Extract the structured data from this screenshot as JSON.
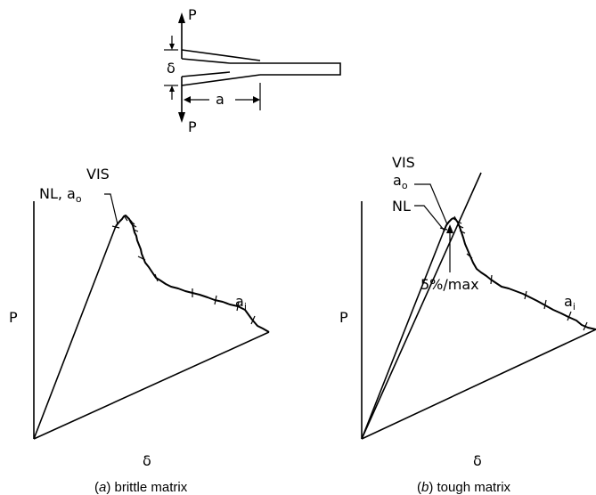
{
  "specimen": {
    "load_top": "P",
    "load_bottom": "P",
    "opening": "δ",
    "crack_length": "a"
  },
  "panel_a": {
    "ylabel": "P",
    "xlabel": "δ",
    "vis_label": "VIS",
    "nl_ao_label": "NL, a",
    "nl_ao_sub": "o",
    "ai_label": "a",
    "ai_sub": "i",
    "caption_letter": "a",
    "caption_text": "brittle matrix"
  },
  "panel_b": {
    "ylabel": "P",
    "xlabel": "δ",
    "vis_label": "VIS",
    "ao_label": "a",
    "ao_sub": "o",
    "nl_label": "NL",
    "five_pct_label": "5%/max",
    "ai_label": "a",
    "ai_sub": "i",
    "caption_letter": "b",
    "caption_text": "tough matrix"
  }
}
